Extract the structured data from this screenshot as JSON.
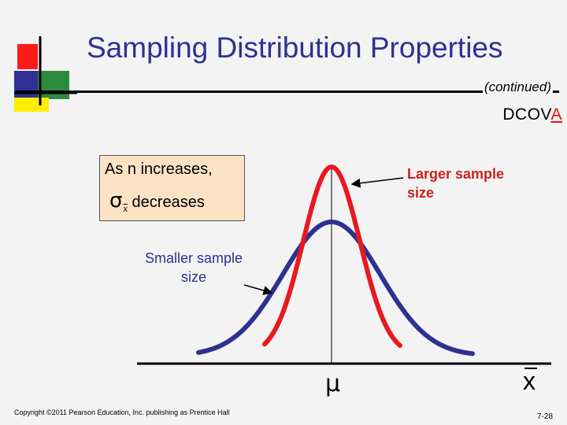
{
  "slide": {
    "title": "Sampling Distribution Properties",
    "subtitle": "(continued)",
    "dcova_prefix": "DCOV",
    "dcova_highlight": "A",
    "copyright": "Copyright ©2011 Pearson Education, Inc. publishing as Prentice Hall",
    "page_number": "7-28"
  },
  "note": {
    "line1": "As n  increases,",
    "sigma_symbol": "σ",
    "sigma_subscript": "x",
    "line2": "decreases"
  },
  "labels": {
    "larger_sample": "Larger sample size",
    "smaller_sample": "Smaller sample size",
    "mean_symbol": "μ",
    "axis_symbol": "x"
  },
  "colors": {
    "title": "#2e3192",
    "larger_curve": "#e8191f",
    "smaller_curve": "#2e3192",
    "note_box": "#fde2c6",
    "accent": "#e11111"
  }
}
